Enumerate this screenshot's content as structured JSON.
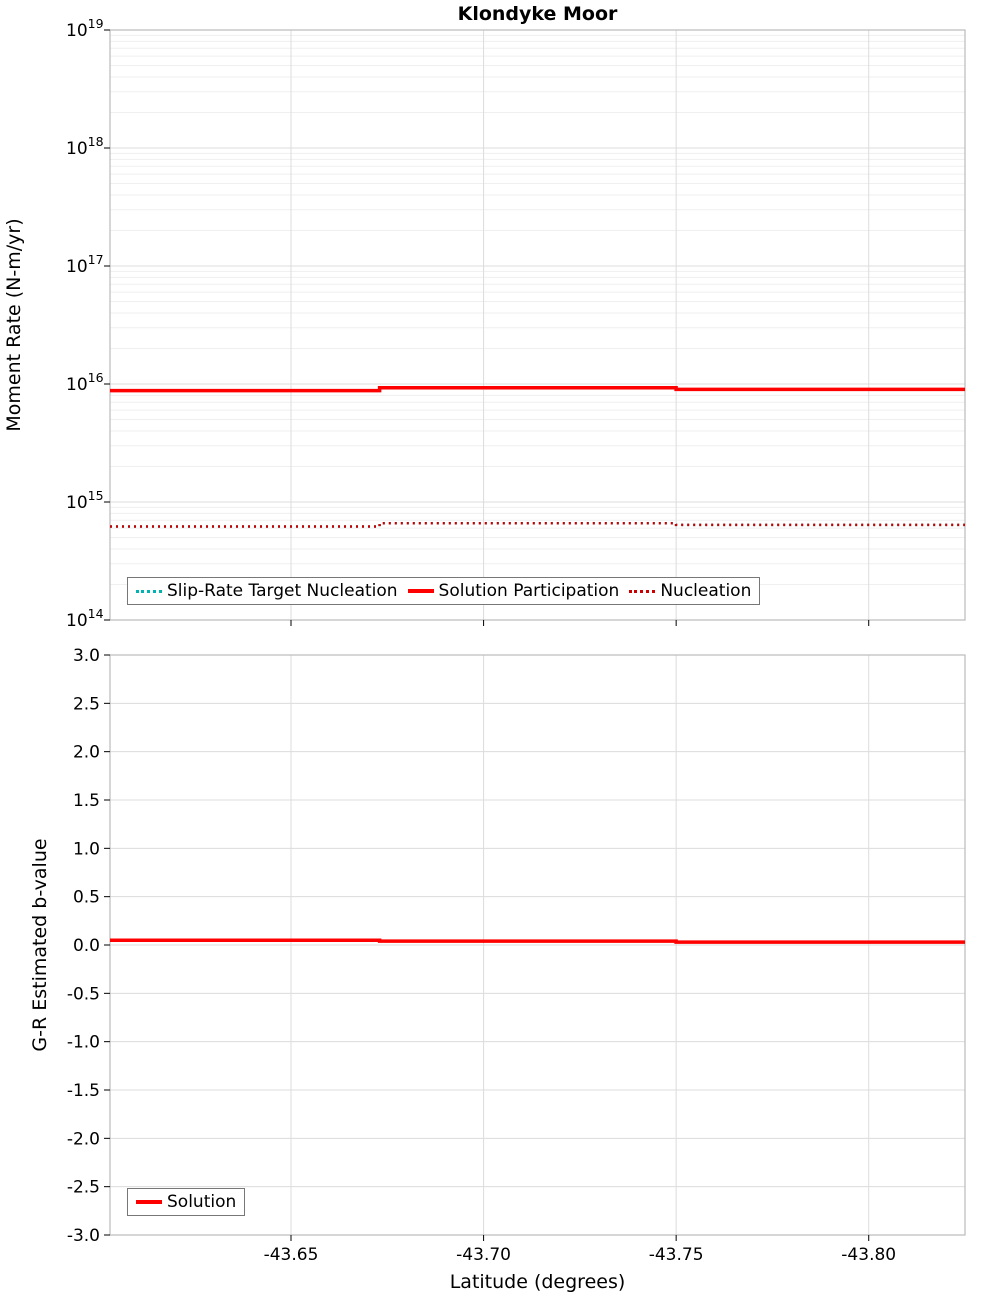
{
  "figure": {
    "title": "Klondyke Moor",
    "xlabel": "Latitude (degrees)"
  },
  "chart_data": [
    {
      "name": "moment-rate",
      "type": "line",
      "title": "Klondyke Moor",
      "ylabel": "Moment Rate (N-m/yr)",
      "yscale": "log",
      "ylim": [
        100000000000000.0,
        1e+19
      ],
      "ytick_exponents": [
        19,
        18,
        17,
        16,
        15,
        14
      ],
      "xlim": [
        -43.603,
        -43.825
      ],
      "xticks": [
        -43.65,
        -43.7,
        -43.75,
        -43.8
      ],
      "xtick_labels_visible": false,
      "grid": "on",
      "legend_position": "bottom-left",
      "series": [
        {
          "name": "Slip-Rate Target Nucleation",
          "color": "#00b3b3",
          "style": "dotted",
          "width": 2.5,
          "points": [
            [
              -43.603,
              620000000000000.0
            ],
            [
              -43.673,
              620000000000000.0
            ],
            [
              -43.673,
              660000000000000.0
            ],
            [
              -43.75,
              660000000000000.0
            ],
            [
              -43.75,
              640000000000000.0
            ],
            [
              -43.825,
              640000000000000.0
            ]
          ]
        },
        {
          "name": "Solution Participation",
          "color": "#ff0000",
          "style": "solid",
          "width": 3.5,
          "points": [
            [
              -43.603,
              8800000000000000.0
            ],
            [
              -43.673,
              8800000000000000.0
            ],
            [
              -43.673,
              9300000000000000.0
            ],
            [
              -43.75,
              9300000000000000.0
            ],
            [
              -43.75,
              9000000000000000.0
            ],
            [
              -43.825,
              9000000000000000.0
            ]
          ]
        },
        {
          "name": "Nucleation",
          "color": "#cc0000",
          "style": "dotted",
          "width": 2.5,
          "points": [
            [
              -43.603,
              620000000000000.0
            ],
            [
              -43.673,
              620000000000000.0
            ],
            [
              -43.673,
              660000000000000.0
            ],
            [
              -43.75,
              660000000000000.0
            ],
            [
              -43.75,
              640000000000000.0
            ],
            [
              -43.825,
              640000000000000.0
            ]
          ]
        }
      ]
    },
    {
      "name": "b-value",
      "type": "line",
      "title": "",
      "ylabel": "G-R Estimated b-value",
      "yscale": "linear",
      "ylim": [
        -3.0,
        3.0
      ],
      "yticks": [
        3.0,
        2.5,
        2.0,
        1.5,
        1.0,
        0.5,
        0.0,
        -0.5,
        -1.0,
        -1.5,
        -2.0,
        -2.5,
        -3.0
      ],
      "xlim": [
        -43.603,
        -43.825
      ],
      "xticks": [
        -43.65,
        -43.7,
        -43.75,
        -43.8
      ],
      "xtick_labels_visible": true,
      "xlabel": "Latitude (degrees)",
      "grid": "on",
      "legend_position": "bottom-left",
      "series": [
        {
          "name": "Solution",
          "color": "#ff0000",
          "style": "solid",
          "width": 3.5,
          "points": [
            [
              -43.603,
              0.05
            ],
            [
              -43.673,
              0.05
            ],
            [
              -43.673,
              0.04
            ],
            [
              -43.75,
              0.04
            ],
            [
              -43.75,
              0.03
            ],
            [
              -43.825,
              0.03
            ]
          ]
        }
      ]
    }
  ]
}
